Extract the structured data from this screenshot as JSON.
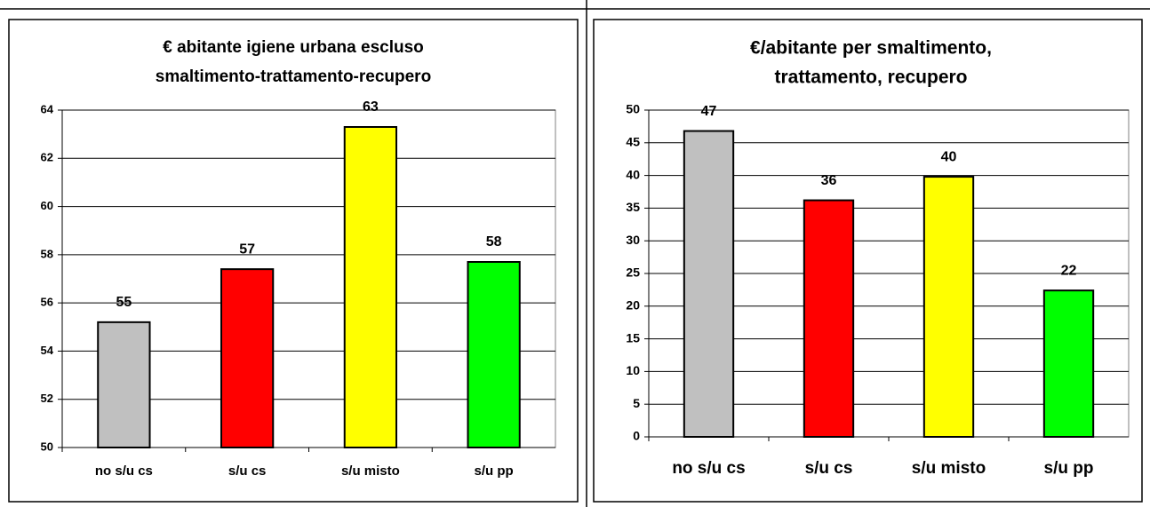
{
  "chart_data": [
    {
      "type": "bar",
      "title": [
        "€ abitante igiene urbana escluso",
        "smaltimento-trattamento-recupero"
      ],
      "categories": [
        "no s/u cs",
        "s/u cs",
        "s/u misto",
        "s/u pp"
      ],
      "values": [
        55.2,
        57.4,
        63.3,
        57.7
      ],
      "value_labels": [
        "55",
        "57",
        "63",
        "58"
      ],
      "colors": [
        "#c0c0c0",
        "#ff0000",
        "#ffff00",
        "#00ff00"
      ],
      "ylim": [
        50,
        64
      ],
      "yticks": [
        50,
        52,
        54,
        56,
        58,
        60,
        62,
        64
      ],
      "grid": true
    },
    {
      "type": "bar",
      "title": [
        "€/abitante per smaltimento,",
        "trattamento, recupero"
      ],
      "categories": [
        "no s/u cs",
        "s/u cs",
        "s/u misto",
        "s/u pp"
      ],
      "values": [
        46.8,
        36.2,
        39.8,
        22.4
      ],
      "value_labels": [
        "47",
        "36",
        "40",
        "22"
      ],
      "colors": [
        "#c0c0c0",
        "#ff0000",
        "#ffff00",
        "#00ff00"
      ],
      "ylim": [
        0,
        50
      ],
      "yticks": [
        0,
        5,
        10,
        15,
        20,
        25,
        30,
        35,
        40,
        45,
        50
      ],
      "grid": true
    }
  ]
}
